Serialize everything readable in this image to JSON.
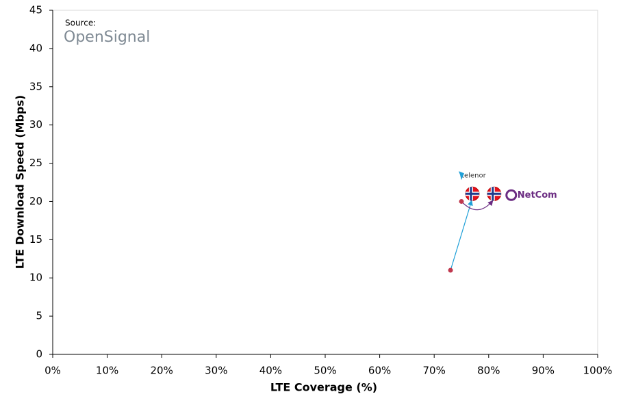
{
  "chart_data": {
    "type": "scatter",
    "x_label": "LTE Coverage (%)",
    "y_label": "LTE Download Speed (Mbps)",
    "source_label": "Source:",
    "source_name": "OpenSignal",
    "xlim": [
      0,
      100
    ],
    "xticks": [
      {
        "value": 0,
        "label": "0%"
      },
      {
        "value": 10,
        "label": "10%"
      },
      {
        "value": 20,
        "label": "20%"
      },
      {
        "value": 30,
        "label": "30%"
      },
      {
        "value": 40,
        "label": "40%"
      },
      {
        "value": 50,
        "label": "50%"
      },
      {
        "value": 60,
        "label": "60%"
      },
      {
        "value": 70,
        "label": "70%"
      },
      {
        "value": 80,
        "label": "80%"
      },
      {
        "value": 90,
        "label": "90%"
      },
      {
        "value": 100,
        "label": "100%"
      }
    ],
    "ylim": [
      0,
      45
    ],
    "yticks": [
      0,
      5,
      10,
      15,
      20,
      25,
      30,
      35,
      40,
      45
    ],
    "series": [
      {
        "name": "telenor",
        "color": "#1fa0d8",
        "x": [
          73,
          77
        ],
        "values": [
          11,
          21
        ]
      },
      {
        "name": "NetCom",
        "color": "#6b2c82",
        "x": [
          75,
          81
        ],
        "values": [
          20,
          21
        ]
      }
    ]
  }
}
